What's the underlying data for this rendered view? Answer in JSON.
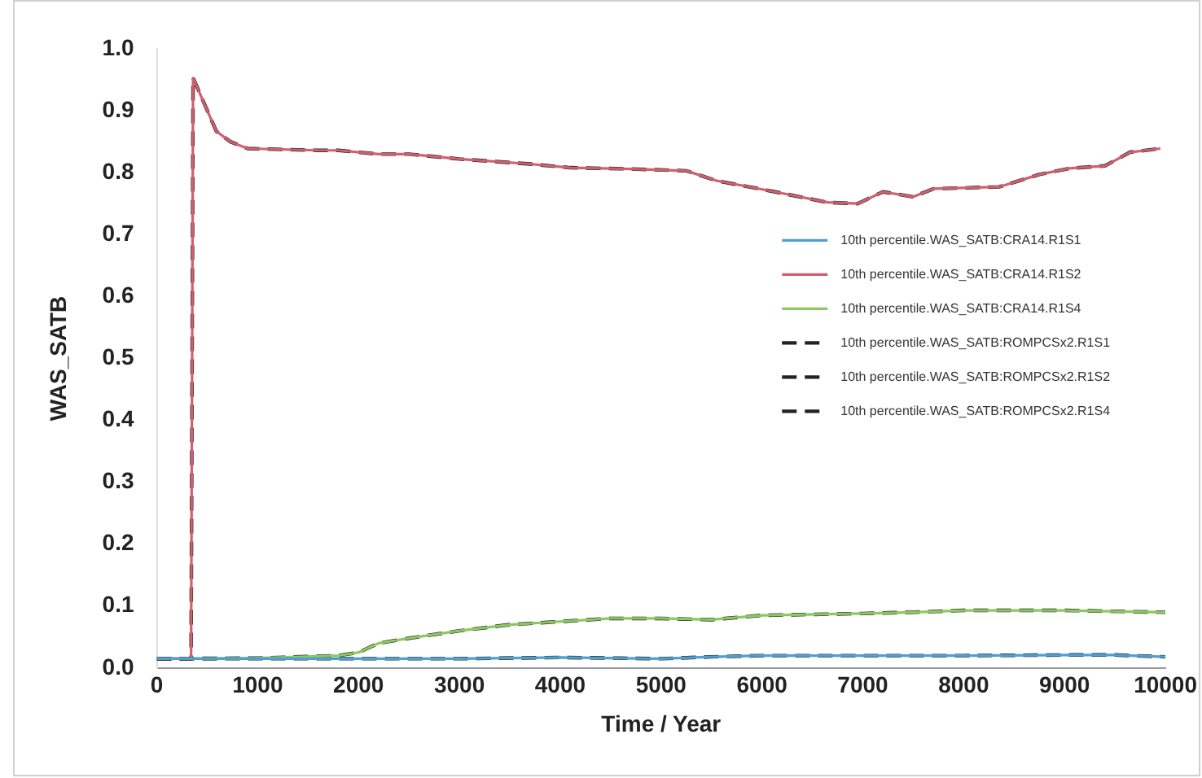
{
  "chart_data": {
    "type": "line",
    "xlabel": "Time / Year",
    "ylabel": "WAS_SATB",
    "xlim": [
      0,
      10000
    ],
    "xticks": [
      0,
      1000,
      2000,
      3000,
      4000,
      5000,
      6000,
      7000,
      8000,
      9000,
      10000
    ],
    "ylim": [
      0,
      1
    ],
    "yticks": [
      {
        "value": 0,
        "label": "0.0"
      },
      0.1,
      0.2,
      0.3,
      0.4,
      0.5,
      0.6,
      0.7,
      0.8,
      0.9,
      {
        "value": 1,
        "label": "1.0"
      }
    ],
    "grid": false,
    "legend": "right",
    "marker": "none",
    "series": [
      {
        "name": "10th percentile.WAS_SATB:CRA14.R1S1",
        "color": "#4f9fd0",
        "line_style": "solid",
        "x": [
          0,
          1000,
          2000,
          3000,
          4000,
          5000,
          5500,
          6000,
          7000,
          8000,
          9000,
          9500,
          10000
        ],
        "values": [
          0.015,
          0.015,
          0.015,
          0.015,
          0.017,
          0.015,
          0.018,
          0.02,
          0.02,
          0.02,
          0.021,
          0.021,
          0.018
        ]
      },
      {
        "name": "10th percentile.WAS_SATB:CRA14.R1S2",
        "color": "#d06070",
        "line_style": "solid",
        "x": [
          0,
          340,
          360,
          590,
          730,
          900,
          1600,
          1800,
          2200,
          2500,
          3000,
          3700,
          4100,
          4700,
          5250,
          5550,
          6100,
          6650,
          6950,
          7200,
          7500,
          7700,
          8350,
          8750,
          9050,
          9400,
          9650,
          9950
        ],
        "values": [
          0.015,
          0.015,
          0.953,
          0.867,
          0.85,
          0.839,
          0.836,
          0.836,
          0.83,
          0.83,
          0.822,
          0.814,
          0.808,
          0.806,
          0.803,
          0.787,
          0.77,
          0.752,
          0.75,
          0.769,
          0.761,
          0.774,
          0.777,
          0.797,
          0.807,
          0.811,
          0.833,
          0.839
        ]
      },
      {
        "name": "10th percentile.WAS_SATB:CRA14.R1S4",
        "color": "#8cc860",
        "line_style": "solid",
        "x": [
          0,
          1000,
          1800,
          2000,
          2200,
          2500,
          3000,
          3500,
          4000,
          4500,
          5000,
          5500,
          6000,
          7000,
          7500,
          8000,
          9000,
          10000
        ],
        "values": [
          0.015,
          0.016,
          0.02,
          0.025,
          0.04,
          0.048,
          0.06,
          0.07,
          0.075,
          0.08,
          0.08,
          0.078,
          0.085,
          0.088,
          0.09,
          0.093,
          0.093,
          0.09
        ]
      },
      {
        "name": "10th percentile.WAS_SATB:ROMPCSx2.R1S1",
        "color": "#222222",
        "line_style": "dashed",
        "x": [
          0,
          1000,
          2000,
          3000,
          4000,
          5000,
          5500,
          6000,
          7000,
          8000,
          9000,
          9500,
          10000
        ],
        "values": [
          0.015,
          0.015,
          0.015,
          0.015,
          0.017,
          0.015,
          0.018,
          0.02,
          0.02,
          0.02,
          0.021,
          0.021,
          0.018
        ]
      },
      {
        "name": "10th percentile.WAS_SATB:ROMPCSx2.R1S2",
        "color": "#222222",
        "line_style": "dashed",
        "x": [
          0,
          340,
          360,
          590,
          730,
          900,
          1600,
          1800,
          2200,
          2500,
          3000,
          3700,
          4100,
          4700,
          5250,
          5550,
          6100,
          6650,
          6950,
          7200,
          7500,
          7700,
          8350,
          8750,
          9050,
          9400,
          9650,
          9950
        ],
        "values": [
          0.015,
          0.015,
          0.953,
          0.867,
          0.85,
          0.839,
          0.836,
          0.836,
          0.83,
          0.83,
          0.822,
          0.814,
          0.808,
          0.806,
          0.803,
          0.787,
          0.77,
          0.752,
          0.75,
          0.769,
          0.761,
          0.774,
          0.777,
          0.797,
          0.807,
          0.811,
          0.833,
          0.839
        ]
      },
      {
        "name": "10th percentile.WAS_SATB:ROMPCSx2.R1S4",
        "color": "#222222",
        "line_style": "dashed",
        "x": [
          0,
          1000,
          1800,
          2000,
          2200,
          2500,
          3000,
          3500,
          4000,
          4500,
          5000,
          5500,
          6000,
          7000,
          7500,
          8000,
          9000,
          10000
        ],
        "values": [
          0.015,
          0.016,
          0.02,
          0.025,
          0.04,
          0.048,
          0.06,
          0.07,
          0.075,
          0.08,
          0.08,
          0.078,
          0.085,
          0.088,
          0.09,
          0.093,
          0.093,
          0.09
        ]
      }
    ]
  }
}
